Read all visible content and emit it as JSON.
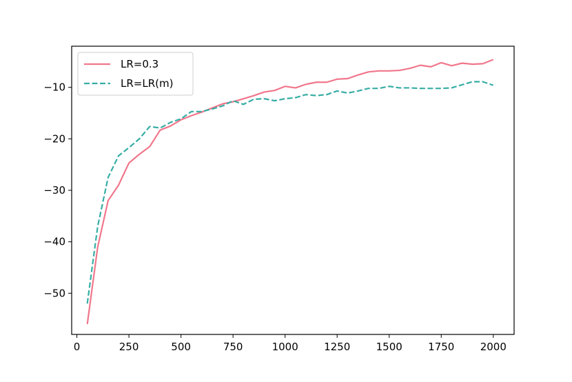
{
  "chart_data": {
    "type": "line",
    "title": "",
    "xlabel": "",
    "ylabel": "",
    "xlim": [
      -25,
      2100
    ],
    "ylim": [
      -58,
      -2
    ],
    "xticks": [
      0,
      250,
      500,
      750,
      1000,
      1250,
      1500,
      1750,
      2000
    ],
    "yticks": [
      -50,
      -40,
      -30,
      -20,
      -10
    ],
    "xtick_labels": [
      "0",
      "250",
      "500",
      "750",
      "1000",
      "1250",
      "1500",
      "1750",
      "2000"
    ],
    "ytick_labels": [
      "−50",
      "−40",
      "−30",
      "−20",
      "−10"
    ],
    "grid": false,
    "legend_position": "upper-left",
    "x": [
      50,
      100,
      150,
      200,
      250,
      300,
      350,
      400,
      450,
      500,
      550,
      600,
      650,
      700,
      750,
      800,
      850,
      900,
      950,
      1000,
      1050,
      1100,
      1150,
      1200,
      1250,
      1300,
      1350,
      1400,
      1450,
      1500,
      1550,
      1600,
      1650,
      1700,
      1750,
      1800,
      1850,
      1900,
      1950,
      2000
    ],
    "series": [
      {
        "name": "LR=0.3",
        "color": "#f0768b",
        "style": "solid",
        "values": [
          -56.0,
          -41.0,
          -32.0,
          -29.0,
          -24.7,
          -23.0,
          -21.5,
          -18.3,
          -17.5,
          -16.3,
          -15.5,
          -14.8,
          -14.0,
          -13.2,
          -12.8,
          -12.2,
          -11.6,
          -10.9,
          -10.6,
          -9.8,
          -10.1,
          -9.4,
          -9.0,
          -9.0,
          -8.4,
          -8.3,
          -7.6,
          -7.0,
          -6.8,
          -6.8,
          -6.7,
          -6.3,
          -5.7,
          -6.0,
          -5.2,
          -5.8,
          -5.3,
          -5.5,
          -5.4,
          -4.6
        ]
      },
      {
        "name": "LR=LR(m)",
        "color": "#36ada4",
        "style": "dashed",
        "values": [
          -52.0,
          -37.0,
          -27.5,
          -23.3,
          -21.7,
          -20.0,
          -17.6,
          -17.9,
          -16.8,
          -16.1,
          -14.7,
          -14.7,
          -14.2,
          -13.6,
          -12.6,
          -13.3,
          -12.3,
          -12.2,
          -12.6,
          -12.2,
          -12.0,
          -11.4,
          -11.6,
          -11.4,
          -10.7,
          -11.1,
          -10.7,
          -10.2,
          -10.2,
          -9.8,
          -10.1,
          -10.1,
          -10.2,
          -10.2,
          -10.2,
          -10.1,
          -9.5,
          -8.9,
          -8.9,
          -9.6
        ]
      }
    ]
  }
}
